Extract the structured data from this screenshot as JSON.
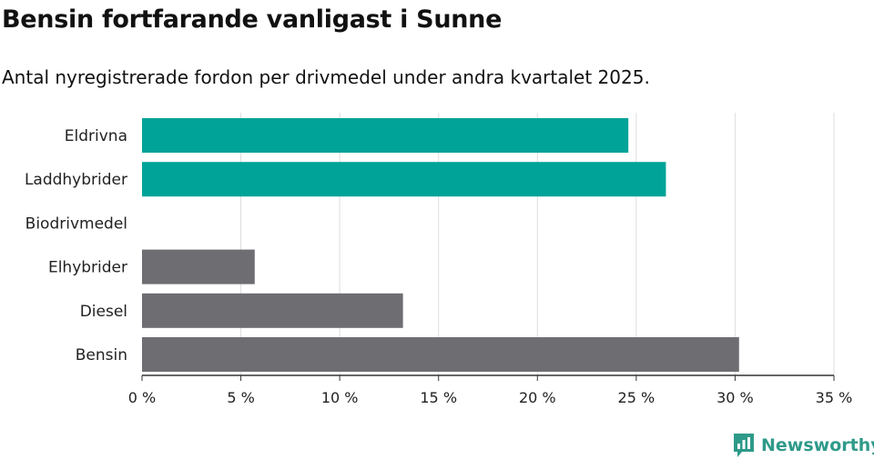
{
  "title": "Bensin fortfarande vanligast i Sunne",
  "subtitle": "Antal nyregistrerade fordon per drivmedel under andra kvartalet 2025.",
  "brand": {
    "name": "Newsworthy",
    "color": "#2e9a89",
    "icon": "newsworthy-logo-icon"
  },
  "colors": {
    "highlight": "#00a398",
    "default": "#6e6d72",
    "grid": "#dddddd",
    "axis": "#333333"
  },
  "chart_data": {
    "type": "bar",
    "orientation": "horizontal",
    "categories": [
      "Eldrivna",
      "Laddhybrider",
      "Biodrivmedel",
      "Elhybrider",
      "Diesel",
      "Bensin"
    ],
    "values": [
      24.6,
      26.5,
      0,
      5.7,
      13.2,
      30.2
    ],
    "highlighted": [
      true,
      true,
      false,
      false,
      false,
      false
    ],
    "xlim": [
      0,
      35
    ],
    "xticks": [
      0,
      5,
      10,
      15,
      20,
      25,
      30,
      35
    ],
    "tick_labels": [
      "0 %",
      "5 %",
      "10 %",
      "15 %",
      "20 %",
      "25 %",
      "30 %",
      "35 %"
    ],
    "grid": true,
    "legend": "none"
  }
}
